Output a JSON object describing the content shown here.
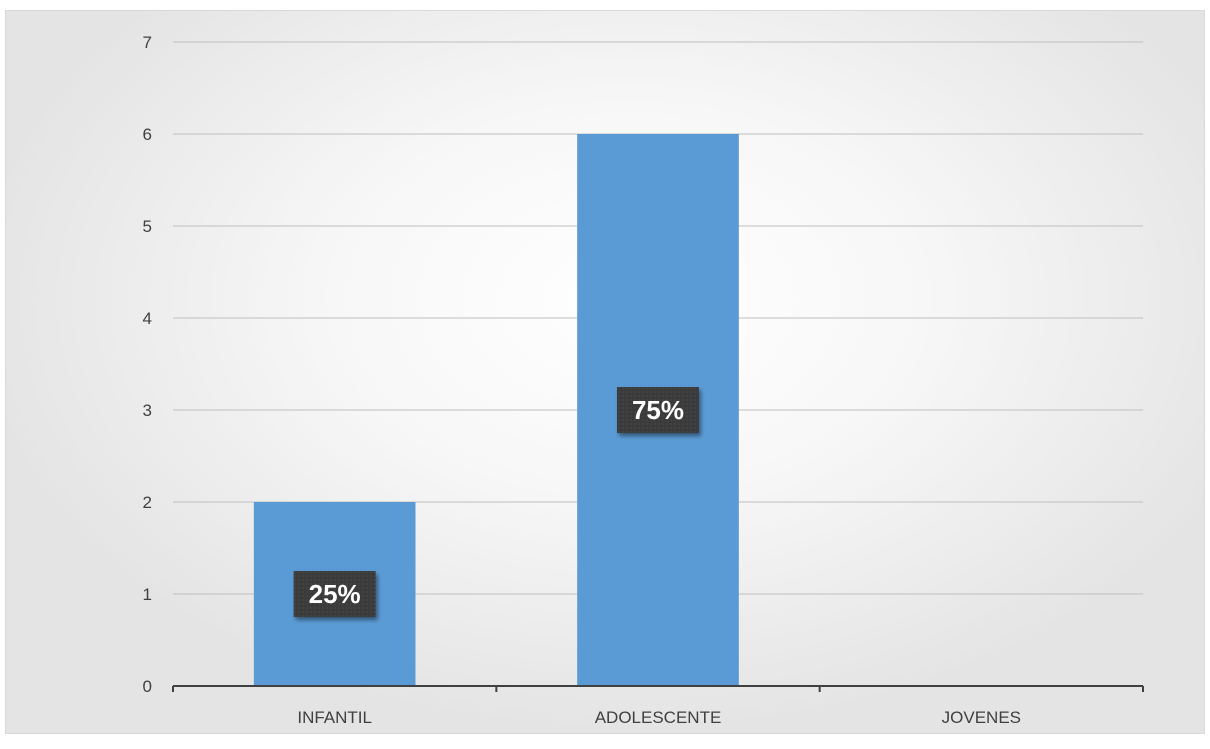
{
  "chart_data": {
    "type": "bar",
    "categories": [
      "INFANTIL",
      "ADOLESCENTE",
      "JOVENES"
    ],
    "values": [
      2,
      6,
      0
    ],
    "data_labels": [
      "25%",
      "75%",
      ""
    ],
    "yticks": [
      "0",
      "1",
      "2",
      "3",
      "4",
      "5",
      "6",
      "7"
    ],
    "ylim": [
      0,
      7
    ],
    "grid": true,
    "legend": "none",
    "title": "",
    "xlabel": "",
    "ylabel": "",
    "colors": {
      "bar": "#5b9bd5",
      "gridline": "#bfbfbf",
      "axis": "#404040",
      "label_box": "#404040",
      "label_text": "#ffffff"
    }
  }
}
